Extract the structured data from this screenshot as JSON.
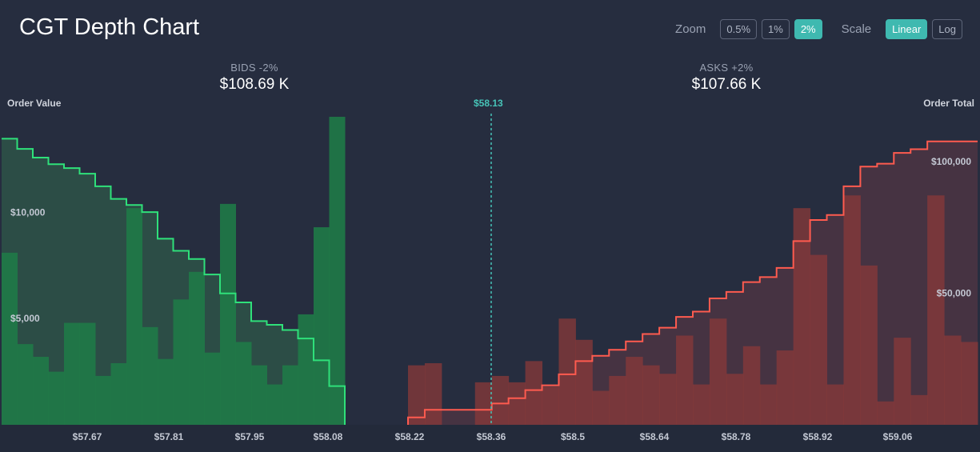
{
  "header": {
    "title": "CGT Depth Chart",
    "zoom_label": "Zoom",
    "zoom_options": [
      "0.5%",
      "1%",
      "2%"
    ],
    "zoom_selected": "2%",
    "scale_label": "Scale",
    "scale_options": [
      "Linear",
      "Log"
    ],
    "scale_selected": "Linear"
  },
  "summary": {
    "bids_label": "BIDS -2%",
    "bids_value": "$108.69 K",
    "asks_label": "ASKS +2%",
    "asks_value": "$107.66 K"
  },
  "axes": {
    "left_title": "Order Value",
    "right_title": "Order Total",
    "mid_price_label": "$58.13"
  },
  "colors": {
    "background": "#262d3f",
    "bid_line": "#2fe07a",
    "ask_line": "#ff5b4f",
    "mid_line": "#47c4b8"
  },
  "chart_data": {
    "type": "bar",
    "mid_price": 58.13,
    "x_ticks": [
      57.67,
      57.81,
      57.95,
      58.08,
      58.22,
      58.36,
      58.5,
      58.64,
      58.78,
      58.92,
      59.06
    ],
    "x_tick_labels": [
      "$57.67",
      "$57.81",
      "$57.95",
      "$58.08",
      "$58.22",
      "$58.36",
      "$58.5",
      "$58.64",
      "$58.78",
      "$58.92",
      "$59.06"
    ],
    "x_range": [
      57.55,
      59.22
    ],
    "left_axis": {
      "label": "Order Value",
      "ticks": [
        5000,
        10000
      ],
      "tick_labels": [
        "$5,000",
        "$10,000"
      ],
      "range": [
        0,
        14500
      ]
    },
    "right_axis": {
      "label": "Order Total",
      "ticks": [
        50000,
        100000
      ],
      "tick_labels": [
        "$50,000",
        "$100,000"
      ],
      "range": [
        0,
        117000
      ]
    },
    "bids": {
      "order_value": [
        8100,
        3800,
        3200,
        2500,
        4800,
        4800,
        2300,
        2900,
        10200,
        4600,
        3100,
        5900,
        7200,
        3400,
        10400,
        3900,
        2800,
        1900,
        2800,
        5200,
        9300,
        14500
      ],
      "order_total": [
        108690,
        104800,
        101500,
        99000,
        97500,
        95400,
        90600,
        85800,
        83500,
        80800,
        70700,
        66100,
        63000,
        57100,
        49900,
        46500,
        39400,
        38000,
        36000,
        32800,
        24500,
        14700
      ]
    },
    "asks": {
      "order_value": [
        2800,
        2900,
        0,
        0,
        2000,
        2300,
        2000,
        3000,
        1800,
        5000,
        4000,
        1600,
        2300,
        3200,
        2800,
        2400,
        4200,
        1900,
        5000,
        2400,
        3700,
        1900,
        3500,
        10200,
        8000,
        1900,
        10800,
        7500,
        1100,
        4100,
        1400,
        10800,
        4200,
        3900
      ],
      "order_total": [
        2800,
        5700,
        5700,
        5700,
        5700,
        8100,
        10100,
        13200,
        15000,
        19200,
        24200,
        26200,
        28500,
        31700,
        34500,
        36900,
        41000,
        43000,
        48000,
        50500,
        54200,
        56100,
        59600,
        69800,
        77800,
        79700,
        90600,
        98100,
        99200,
        103300,
        104700,
        107660,
        107660,
        107660
      ]
    }
  }
}
